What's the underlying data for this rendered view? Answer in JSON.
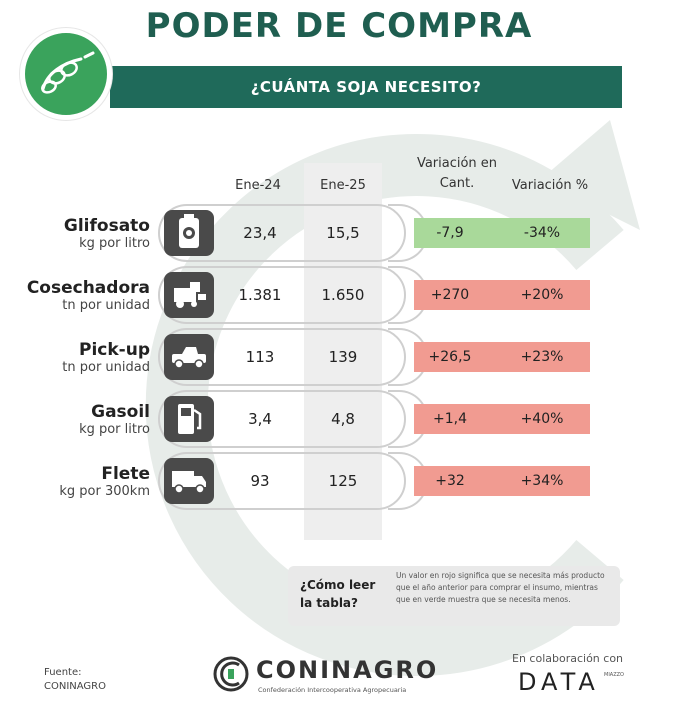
{
  "title": "PODER DE COMPRA",
  "subtitle": "¿CUÁNTA SOJA NECESITO?",
  "colors": {
    "primary_green": "#1f6a5a",
    "title_green": "#1f5e50",
    "logo_green": "#3aa35c",
    "increase_red": "#f19b91",
    "decrease_green": "#a9d99a",
    "arc_grey": "#e7ece9"
  },
  "headers": {
    "col_2024": "Ene-24",
    "col_2025": "Ene-25",
    "var_cant": "Variación en Cant.",
    "var_pct": "Variación %"
  },
  "rows": [
    {
      "name": "Glifosato",
      "unit": "kg por litro",
      "icon": "herbicide-container-icon",
      "ene24": "23,4",
      "ene25": "15,5",
      "var_cant": "-7,9",
      "var_pct": "-34%",
      "direction": "down"
    },
    {
      "name": "Cosechadora",
      "unit": "tn por unidad",
      "icon": "harvester-icon",
      "ene24": "1.381",
      "ene25": "1.650",
      "var_cant": "+270",
      "var_pct": "+20%",
      "direction": "up"
    },
    {
      "name": "Pick-up",
      "unit": "tn por unidad",
      "icon": "pickup-truck-icon",
      "ene24": "113",
      "ene25": "139",
      "var_cant": "+26,5",
      "var_pct": "+23%",
      "direction": "up"
    },
    {
      "name": "Gasoil",
      "unit": "kg por litro",
      "icon": "fuel-pump-icon",
      "ene24": "3,4",
      "ene25": "4,8",
      "var_cant": "+1,4",
      "var_pct": "+40%",
      "direction": "up"
    },
    {
      "name": "Flete",
      "unit": "kg por 300km",
      "icon": "delivery-truck-icon",
      "ene24": "93",
      "ene25": "125",
      "var_cant": "+32",
      "var_pct": "+34%",
      "direction": "up"
    }
  ],
  "help": {
    "question": "¿Cómo leer la tabla?",
    "answer": "Un valor en rojo significa que se necesita más producto que el año anterior para comprar el insumo, mientras que en verde muestra que se necesita menos."
  },
  "footer": {
    "source": "Fuente: CONINAGRO",
    "brand": "CONINAGRO",
    "brand_sub": "Confederación Intercooperativa Agropecuaria",
    "collab": "En colaboración con",
    "partner": "DATA",
    "partner_small": "MIAZZO"
  }
}
